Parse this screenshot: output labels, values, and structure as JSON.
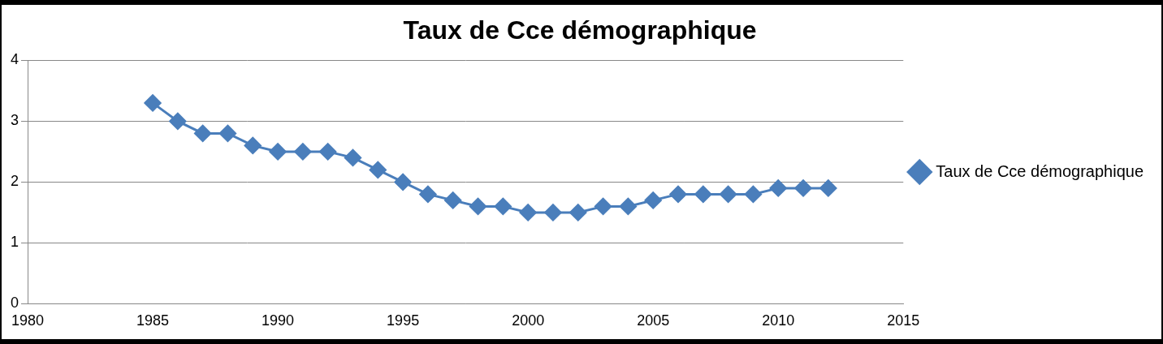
{
  "chart_data": {
    "type": "line",
    "title": "Taux de Cce démographique",
    "x": [
      1985,
      1986,
      1987,
      1988,
      1989,
      1990,
      1991,
      1992,
      1993,
      1994,
      1995,
      1996,
      1997,
      1998,
      1999,
      2000,
      2001,
      2002,
      2003,
      2004,
      2005,
      2006,
      2007,
      2008,
      2009,
      2010,
      2011,
      2012
    ],
    "series": [
      {
        "name": "Taux de Cce démographique",
        "color": "#4a7ebb",
        "marker": "diamond",
        "values": [
          3.3,
          3.0,
          2.8,
          2.8,
          2.6,
          2.5,
          2.5,
          2.5,
          2.4,
          2.2,
          2.0,
          1.8,
          1.7,
          1.6,
          1.6,
          1.5,
          1.5,
          1.5,
          1.6,
          1.6,
          1.7,
          1.8,
          1.8,
          1.8,
          1.8,
          1.9,
          1.9,
          1.9
        ]
      }
    ],
    "xlim": [
      1980,
      2015
    ],
    "xticks": [
      1980,
      1985,
      1990,
      1995,
      2000,
      2005,
      2010,
      2015
    ],
    "ylim": [
      0,
      4
    ],
    "yticks": [
      0,
      1,
      2,
      3,
      4
    ],
    "grid": true,
    "legend": "right"
  }
}
